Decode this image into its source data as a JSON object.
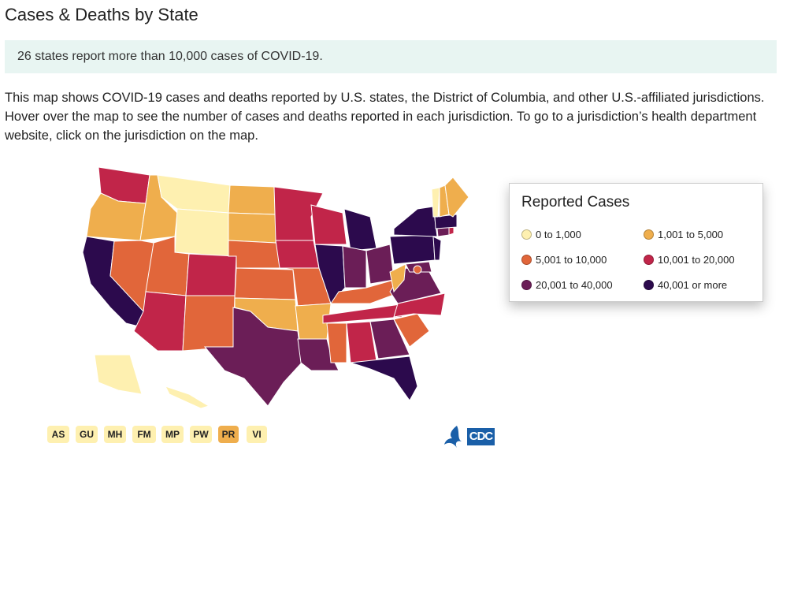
{
  "title": "Cases & Deaths by State",
  "callout": "26 states report more than 10,000 cases of COVID-19.",
  "intro": "This map shows COVID-19 cases and deaths reported by U.S. states, the District of Columbia, and other U.S.-affiliated jurisdictions. Hover over the map to see the number of cases and deaths reported in each jurisdiction. To go to a jurisdiction’s health department website, click on the jurisdiction on the map.",
  "legend": {
    "title": "Reported Cases",
    "bins": [
      {
        "label": "0 to 1,000",
        "color": "#fef0b0"
      },
      {
        "label": "1,001 to 5,000",
        "color": "#efae4d"
      },
      {
        "label": "5,001 to 10,000",
        "color": "#e1663a"
      },
      {
        "label": "10,001 to 20,000",
        "color": "#c12549"
      },
      {
        "label": "20,001 to 40,000",
        "color": "#6b1e57"
      },
      {
        "label": "40,001 or more",
        "color": "#2c0a4d"
      }
    ]
  },
  "states": {
    "WA": 3,
    "OR": 1,
    "CA": 5,
    "NV": 2,
    "ID": 1,
    "MT": 0,
    "WY": 0,
    "UT": 2,
    "AZ": 3,
    "CO": 3,
    "NM": 2,
    "ND": 1,
    "SD": 1,
    "NE": 2,
    "KS": 2,
    "OK": 1,
    "TX": 4,
    "MN": 3,
    "IA": 3,
    "MO": 2,
    "AR": 1,
    "LA": 4,
    "WI": 3,
    "IL": 5,
    "MI": 5,
    "IN": 4,
    "OH": 4,
    "KY": 2,
    "TN": 3,
    "MS": 2,
    "AL": 3,
    "GA": 4,
    "FL": 5,
    "SC": 2,
    "NC": 3,
    "VA": 4,
    "WV": 1,
    "MD": 4,
    "PA": 5,
    "NY": 5,
    "NJ": 5,
    "CT": 4,
    "RI": 3,
    "MA": 5,
    "VT": 0,
    "NH": 1,
    "ME": 1,
    "AK": 0,
    "HI": 0,
    "DC": 2
  },
  "territories": [
    {
      "label": "AS",
      "bin": 0
    },
    {
      "label": "GU",
      "bin": 0
    },
    {
      "label": "MH",
      "bin": 0
    },
    {
      "label": "FM",
      "bin": 0
    },
    {
      "label": "MP",
      "bin": 0
    },
    {
      "label": "PW",
      "bin": 0
    },
    {
      "label": "PR",
      "bin": 1
    },
    {
      "label": "VI",
      "bin": 0
    }
  ],
  "logo": {
    "text": "CDC"
  }
}
